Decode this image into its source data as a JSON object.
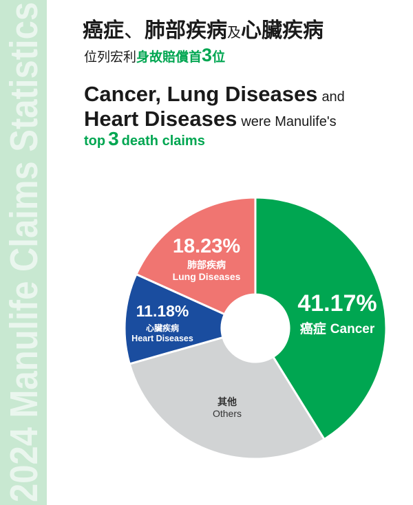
{
  "sidebar": {
    "text": "2024 Manulife Claims Statistics"
  },
  "heading_zh": {
    "part1": "癌症",
    "sep": "、",
    "part2": "肺部疾病",
    "conj": "及",
    "part3": "心臟疾病"
  },
  "subheading_zh": {
    "prefix": "位列宏利",
    "highlight": "身故賠償首",
    "number": "3",
    "suffix": "位"
  },
  "heading_en": {
    "line1_bold": "Cancer, Lung Diseases",
    "line1_rest": "and",
    "line2_bold": "Heart Diseases",
    "line2_rest": "were Manulife's",
    "line3_pre": "top",
    "line3_number": "3",
    "line3_post": "death claims"
  },
  "colors": {
    "brand_green": "#00a651",
    "band_background": "#c8e8d1",
    "band_text": "#eaf6ee",
    "heading_text": "#1a1a1a"
  },
  "chart_data": {
    "type": "pie",
    "donut": true,
    "slices": [
      {
        "label_zh": "癌症",
        "label_en": "Cancer",
        "value": 41.17,
        "value_label": "41.17%",
        "color": "#00a651"
      },
      {
        "label_zh": "其他",
        "label_en": "Others",
        "value": 29.42,
        "color": "#d1d3d4"
      },
      {
        "label_zh": "心臟疾病",
        "label_en": "Heart Diseases",
        "value": 11.18,
        "value_label": "11.18%",
        "color": "#1a4d9f"
      },
      {
        "label_zh": "肺部疾病",
        "label_en": "Lung Diseases",
        "value": 18.23,
        "value_label": "18.23%",
        "color": "#f07571"
      }
    ]
  }
}
